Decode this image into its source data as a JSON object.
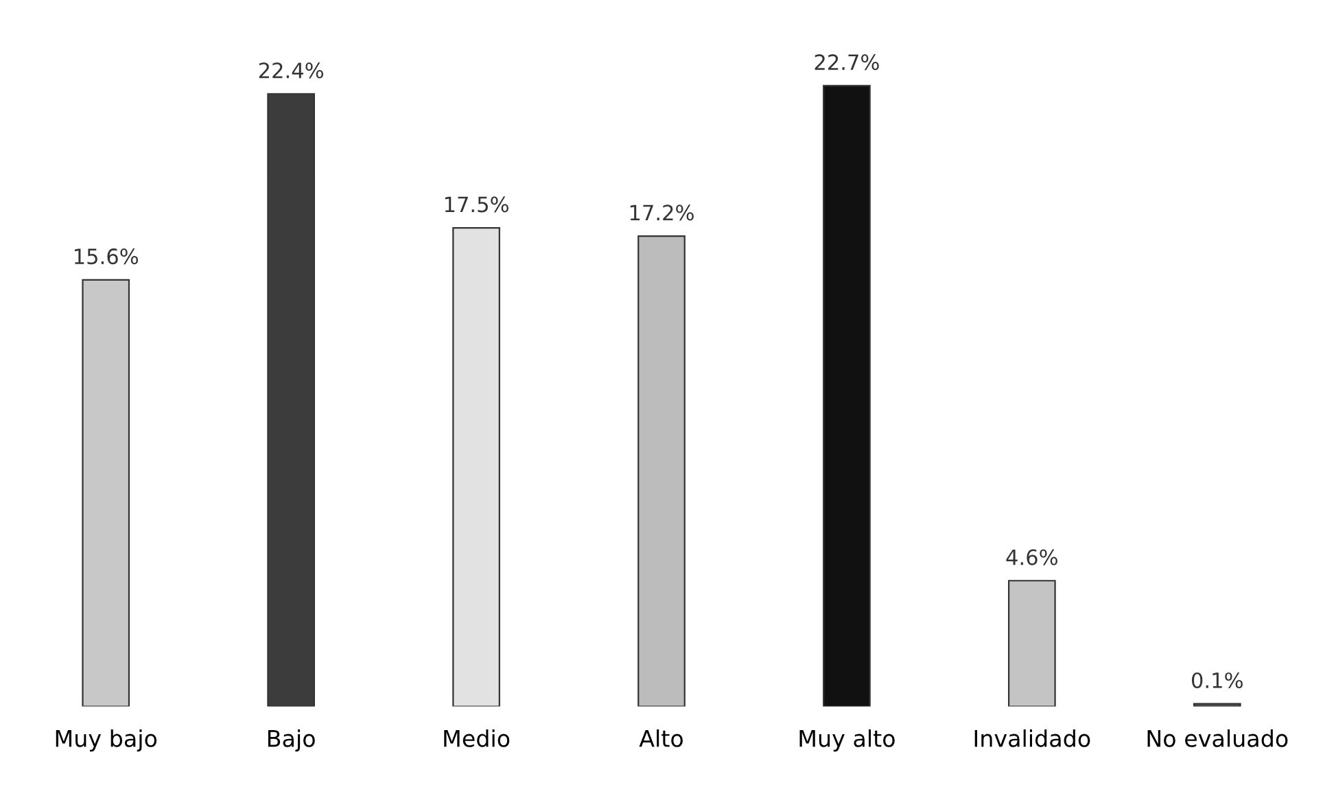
{
  "chart_data": {
    "type": "bar",
    "categories": [
      "Muy bajo",
      "Bajo",
      "Medio",
      "Alto",
      "Muy alto",
      "Invalidado",
      "No evaluado"
    ],
    "values": [
      15.6,
      22.4,
      17.5,
      17.2,
      22.7,
      4.6,
      0.1
    ],
    "value_labels": [
      "15.6%",
      "22.4%",
      "17.5%",
      "17.2%",
      "22.7%",
      "4.6%",
      "0.1%"
    ],
    "colors": [
      "#c8c8c8",
      "#3c3c3c",
      "#e2e2e2",
      "#bcbcbc",
      "#111111",
      "#c4c4c4",
      "#555555"
    ],
    "grid": false,
    "legend": false
  }
}
